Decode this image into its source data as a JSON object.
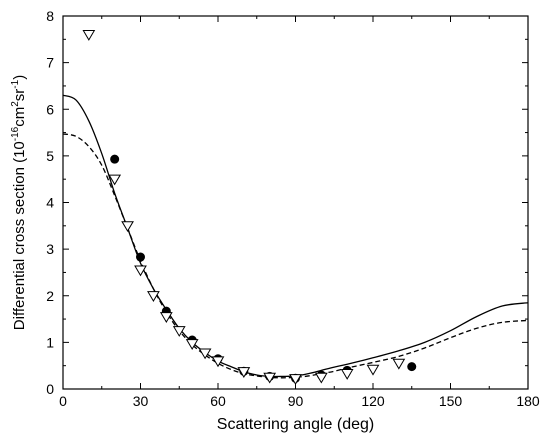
{
  "chart_data": {
    "type": "scatter",
    "title": "",
    "xlabel": "Scattering angle (deg)",
    "ylabel": {
      "main": "Differential cross section (10",
      "exp": "-16",
      "unit1": "cm",
      "exp2": "2",
      "unit2": "sr",
      "exp3": "-1",
      "close": ")"
    },
    "xlim": [
      0,
      180
    ],
    "ylim": [
      0,
      8
    ],
    "xticks": [
      "0",
      "30",
      "60",
      "90",
      "120",
      "150",
      "180"
    ],
    "yticks": [
      "0",
      "1",
      "2",
      "3",
      "4",
      "5",
      "6",
      "7",
      "8"
    ],
    "grid": false,
    "legend": "none",
    "series": [
      {
        "style": "solid-line",
        "color": "#000000",
        "x": [
          0,
          5,
          10,
          15,
          20,
          25,
          30,
          35,
          40,
          45,
          50,
          55,
          60,
          65,
          70,
          75,
          80,
          85,
          90,
          95,
          100,
          105,
          110,
          120,
          130,
          140,
          150,
          160,
          170,
          180
        ],
        "y": [
          6.3,
          6.2,
          5.75,
          5.05,
          4.2,
          3.45,
          2.7,
          2.15,
          1.7,
          1.3,
          1.0,
          0.78,
          0.6,
          0.48,
          0.37,
          0.3,
          0.27,
          0.27,
          0.28,
          0.33,
          0.4,
          0.47,
          0.53,
          0.67,
          0.82,
          1.0,
          1.25,
          1.55,
          1.78,
          1.85
        ]
      },
      {
        "style": "dashed-line",
        "color": "#000000",
        "x": [
          0,
          5,
          10,
          15,
          20,
          25,
          30,
          35,
          40,
          45,
          50,
          55,
          60,
          65,
          70,
          75,
          80,
          85,
          90,
          95,
          100,
          105,
          110,
          120,
          130,
          140,
          150,
          160,
          170,
          180
        ],
        "y": [
          5.47,
          5.42,
          5.2,
          4.8,
          4.15,
          3.45,
          2.75,
          2.15,
          1.65,
          1.25,
          0.95,
          0.73,
          0.55,
          0.42,
          0.33,
          0.28,
          0.25,
          0.24,
          0.25,
          0.28,
          0.33,
          0.38,
          0.45,
          0.57,
          0.7,
          0.88,
          1.1,
          1.3,
          1.43,
          1.47
        ]
      },
      {
        "style": "filled-circle",
        "color": "#000000",
        "x": [
          20,
          30,
          40,
          50,
          60,
          70,
          80,
          90,
          100,
          110,
          135
        ],
        "y": [
          4.93,
          2.83,
          1.67,
          1.05,
          0.65,
          0.38,
          0.27,
          0.23,
          0.3,
          0.4,
          0.48
        ]
      },
      {
        "style": "open-triangle-down",
        "color": "#000000",
        "x": [
          10,
          20,
          25,
          30,
          35,
          40,
          45,
          50,
          55,
          60,
          70,
          80,
          90,
          100,
          110,
          120,
          130
        ],
        "y": [
          7.6,
          4.5,
          3.5,
          2.55,
          2.0,
          1.55,
          1.25,
          0.97,
          0.77,
          0.6,
          0.37,
          0.25,
          0.22,
          0.25,
          0.33,
          0.42,
          0.55
        ]
      }
    ]
  }
}
